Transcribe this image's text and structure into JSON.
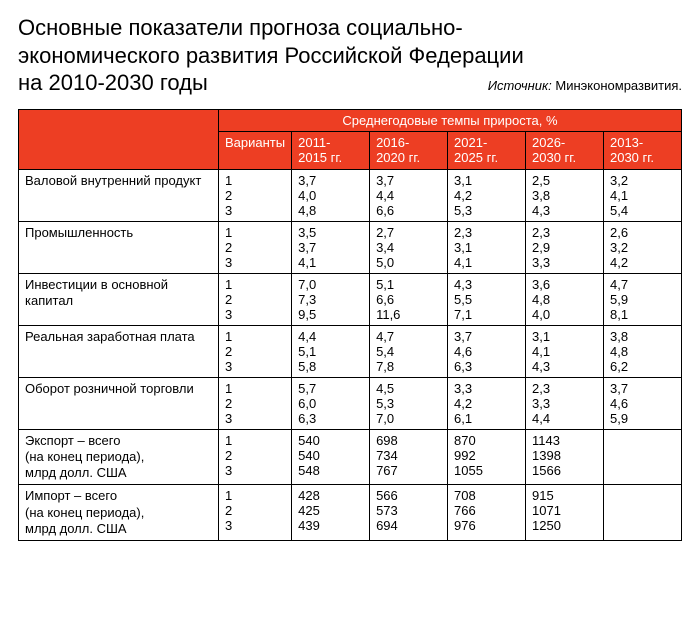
{
  "title": {
    "line1": "Основные показатели прогноза социально-",
    "line2": "экономического развития Российской Федерации",
    "line3": "на 2010-2030 годы"
  },
  "source": {
    "label": "Источник:",
    "value": "Минэкономразвития."
  },
  "table": {
    "group_header": "Среднегодовые темпы прироста, %",
    "variants_header": "Варианты",
    "periods": [
      {
        "l1": "2011-",
        "l2": "2015 гг."
      },
      {
        "l1": "2016-",
        "l2": "2020 гг."
      },
      {
        "l1": "2021-",
        "l2": "2025 гг."
      },
      {
        "l1": "2026-",
        "l2": "2030 гг."
      },
      {
        "l1": "2013-",
        "l2": "2030 гг."
      }
    ],
    "rows": [
      {
        "indicator": "Валовой внутренний продукт",
        "variants": [
          "1",
          "2",
          "3"
        ],
        "cells": [
          [
            "3,7",
            "4,0",
            "4,8"
          ],
          [
            "3,7",
            "4,4",
            "6,6"
          ],
          [
            "3,1",
            "4,2",
            "5,3"
          ],
          [
            "2,5",
            "3,8",
            "4,3"
          ],
          [
            "3,2",
            "4,1",
            "5,4"
          ]
        ]
      },
      {
        "indicator": "Промышленность",
        "variants": [
          "1",
          "2",
          "3"
        ],
        "cells": [
          [
            "3,5",
            "3,7",
            "4,1"
          ],
          [
            "2,7",
            "3,4",
            "5,0"
          ],
          [
            "2,3",
            "3,1",
            "4,1"
          ],
          [
            "2,3",
            "2,9",
            "3,3"
          ],
          [
            "2,6",
            "3,2",
            "4,2"
          ]
        ]
      },
      {
        "indicator": "Инвестиции в основной капитал",
        "variants": [
          "1",
          "2",
          "3"
        ],
        "cells": [
          [
            "7,0",
            "7,3",
            "9,5"
          ],
          [
            "5,1",
            "6,6",
            "11,6"
          ],
          [
            "4,3",
            "5,5",
            "7,1"
          ],
          [
            "3,6",
            "4,8",
            "4,0"
          ],
          [
            "4,7",
            "5,9",
            "8,1"
          ]
        ]
      },
      {
        "indicator": "Реальная заработная плата",
        "variants": [
          "1",
          "2",
          "3"
        ],
        "cells": [
          [
            "4,4",
            "5,1",
            "5,8"
          ],
          [
            "4,7",
            "5,4",
            "7,8"
          ],
          [
            "3,7",
            "4,6",
            "6,3"
          ],
          [
            "3,1",
            "4,1",
            "4,3"
          ],
          [
            "3,8",
            "4,8",
            "6,2"
          ]
        ]
      },
      {
        "indicator": "Оборот розничной торговли",
        "variants": [
          "1",
          "2",
          "3"
        ],
        "cells": [
          [
            "5,7",
            "6,0",
            "6,3"
          ],
          [
            "4,5",
            "5,3",
            "7,0"
          ],
          [
            "3,3",
            "4,2",
            "6,1"
          ],
          [
            "2,3",
            "3,3",
            "4,4"
          ],
          [
            "3,7",
            "4,6",
            "5,9"
          ]
        ]
      },
      {
        "indicator_lines": [
          "Экспорт – всего",
          "(на конец периода),",
          "млрд долл. США"
        ],
        "variants": [
          "1",
          "2",
          "3"
        ],
        "cells": [
          [
            "540",
            "540",
            "548"
          ],
          [
            "698",
            "734",
            "767"
          ],
          [
            "870",
            "992",
            "1055"
          ],
          [
            "1143",
            "1398",
            "1566"
          ],
          [
            "",
            "",
            " "
          ]
        ]
      },
      {
        "indicator_lines": [
          "Импорт – всего",
          "(на конец периода),",
          "млрд долл. США"
        ],
        "variants": [
          "1",
          "2",
          "3"
        ],
        "cells": [
          [
            "428",
            "425",
            "439"
          ],
          [
            "566",
            "573",
            "694"
          ],
          [
            "708",
            "766",
            "976"
          ],
          [
            "915",
            "1071",
            "1250"
          ],
          [
            "",
            "",
            " "
          ]
        ]
      }
    ]
  },
  "colors": {
    "header_bg": "#ed3e23",
    "header_fg": "#ffffff",
    "border": "#000000",
    "page_bg": "#ffffff",
    "text": "#000000"
  }
}
